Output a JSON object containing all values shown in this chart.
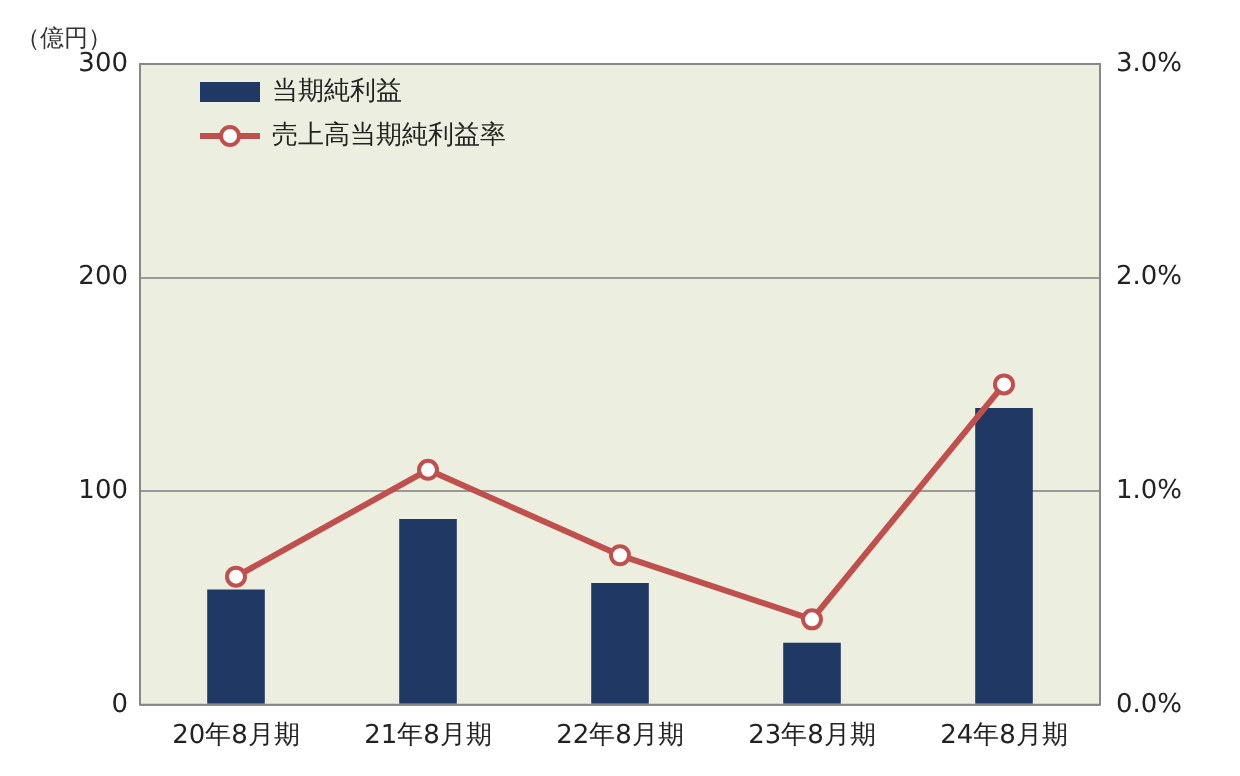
{
  "chart_data": {
    "type": "bar",
    "ylabel": "（億円）",
    "categories": [
      "20年8月期",
      "21年8月期",
      "22年8月期",
      "23年8月期",
      "24年8月期"
    ],
    "series": [
      {
        "name": "当期純利益",
        "color": "#1f3864",
        "values": [
          54,
          87,
          57,
          29,
          139
        ]
      },
      {
        "name": "売上高当期純利益率",
        "type": "line",
        "axis": "y2",
        "color": "#c0504d",
        "values": [
          0.6,
          1.1,
          0.7,
          0.4,
          1.5
        ]
      }
    ],
    "ylim": [
      0,
      300
    ],
    "yticks": [
      0,
      100,
      200,
      300
    ],
    "y2lim": [
      0,
      3
    ],
    "y2ticks": [
      {
        "value": 0,
        "label": "0.0%"
      },
      {
        "value": 1,
        "label": "1.0%"
      },
      {
        "value": 2,
        "label": "2.0%"
      },
      {
        "value": 3,
        "label": "3.0%"
      }
    ],
    "grid": "y",
    "legend": "top left",
    "marker": "circle",
    "line_style": "solid"
  }
}
